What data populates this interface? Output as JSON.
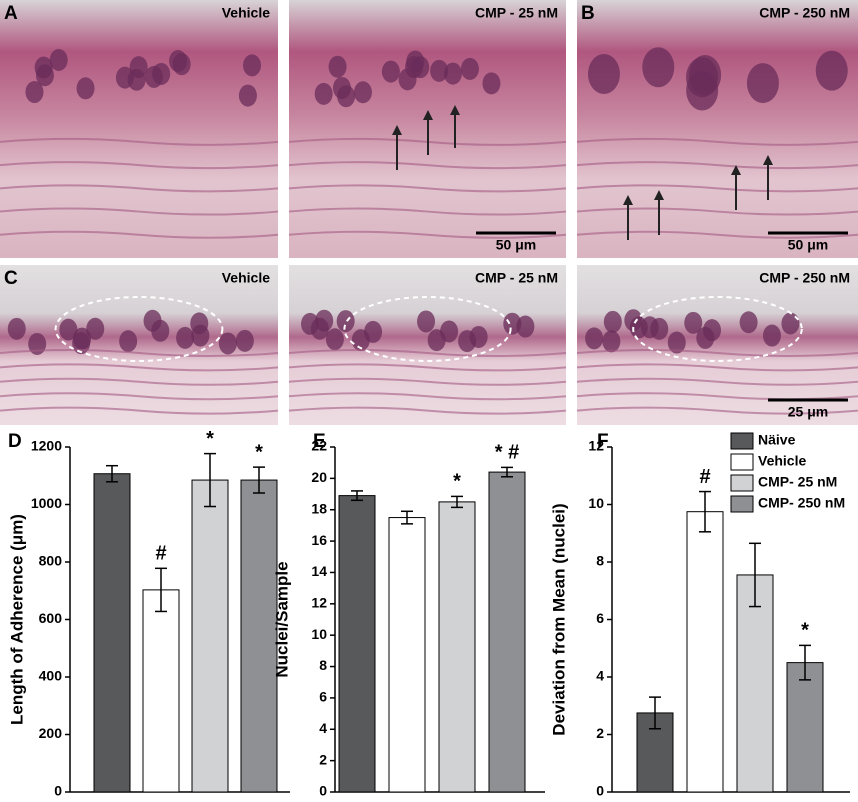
{
  "panels": [
    {
      "letter": "A",
      "caption": "Vehicle"
    },
    {
      "caption": "CMP - 25 nM",
      "scale_bar": "50 μm"
    },
    {
      "letter": "B",
      "caption": "CMP - 250 nM",
      "scale_bar": "50 μm"
    },
    {
      "letter": "C",
      "caption": "Vehicle"
    },
    {
      "caption": "CMP - 25 nM"
    },
    {
      "caption": "CMP - 250 nM",
      "scale_bar": "25 μm"
    }
  ],
  "chart_data": [
    {
      "type": "bar",
      "label": "D",
      "y_label": "Length of Adherence (μm)",
      "values": [
        1107,
        703,
        1085,
        1085
      ],
      "errors": [
        28,
        75,
        92,
        45
      ],
      "annotations": [
        null,
        "#",
        "*",
        "*"
      ],
      "colors": [
        "#58595b",
        "#ffffff",
        "#d1d2d4",
        "#8e9094"
      ],
      "ylim": [
        0,
        1200
      ],
      "yticks": [
        0,
        200,
        400,
        600,
        800,
        1000,
        1200
      ]
    },
    {
      "type": "bar",
      "label": "E",
      "y_label": "Nuclei/Sample",
      "values": [
        18.9,
        17.5,
        18.5,
        20.4
      ],
      "errors": [
        0.3,
        0.4,
        0.35,
        0.3
      ],
      "annotations": [
        null,
        null,
        "*",
        "* #"
      ],
      "colors": [
        "#58595b",
        "#ffffff",
        "#d1d2d4",
        "#8e9094"
      ],
      "ylim": [
        0,
        22
      ],
      "yticks": [
        0,
        2,
        4,
        6,
        8,
        10,
        12,
        14,
        16,
        18,
        20,
        22
      ]
    },
    {
      "type": "bar",
      "label": "F",
      "y_label": "Deviation from Mean (nuclei)",
      "values": [
        2.75,
        9.75,
        7.55,
        4.5
      ],
      "errors": [
        0.55,
        0.7,
        1.1,
        0.6
      ],
      "annotations": [
        null,
        "#",
        null,
        "*"
      ],
      "colors": [
        "#58595b",
        "#ffffff",
        "#d1d2d4",
        "#8e9094"
      ],
      "legend": [
        "Näive",
        "Vehicle",
        "CMP- 25 nM",
        "CMP- 250 nM"
      ],
      "ylim": [
        0,
        12
      ],
      "yticks": [
        0,
        2,
        4,
        6,
        8,
        10,
        12
      ]
    }
  ]
}
